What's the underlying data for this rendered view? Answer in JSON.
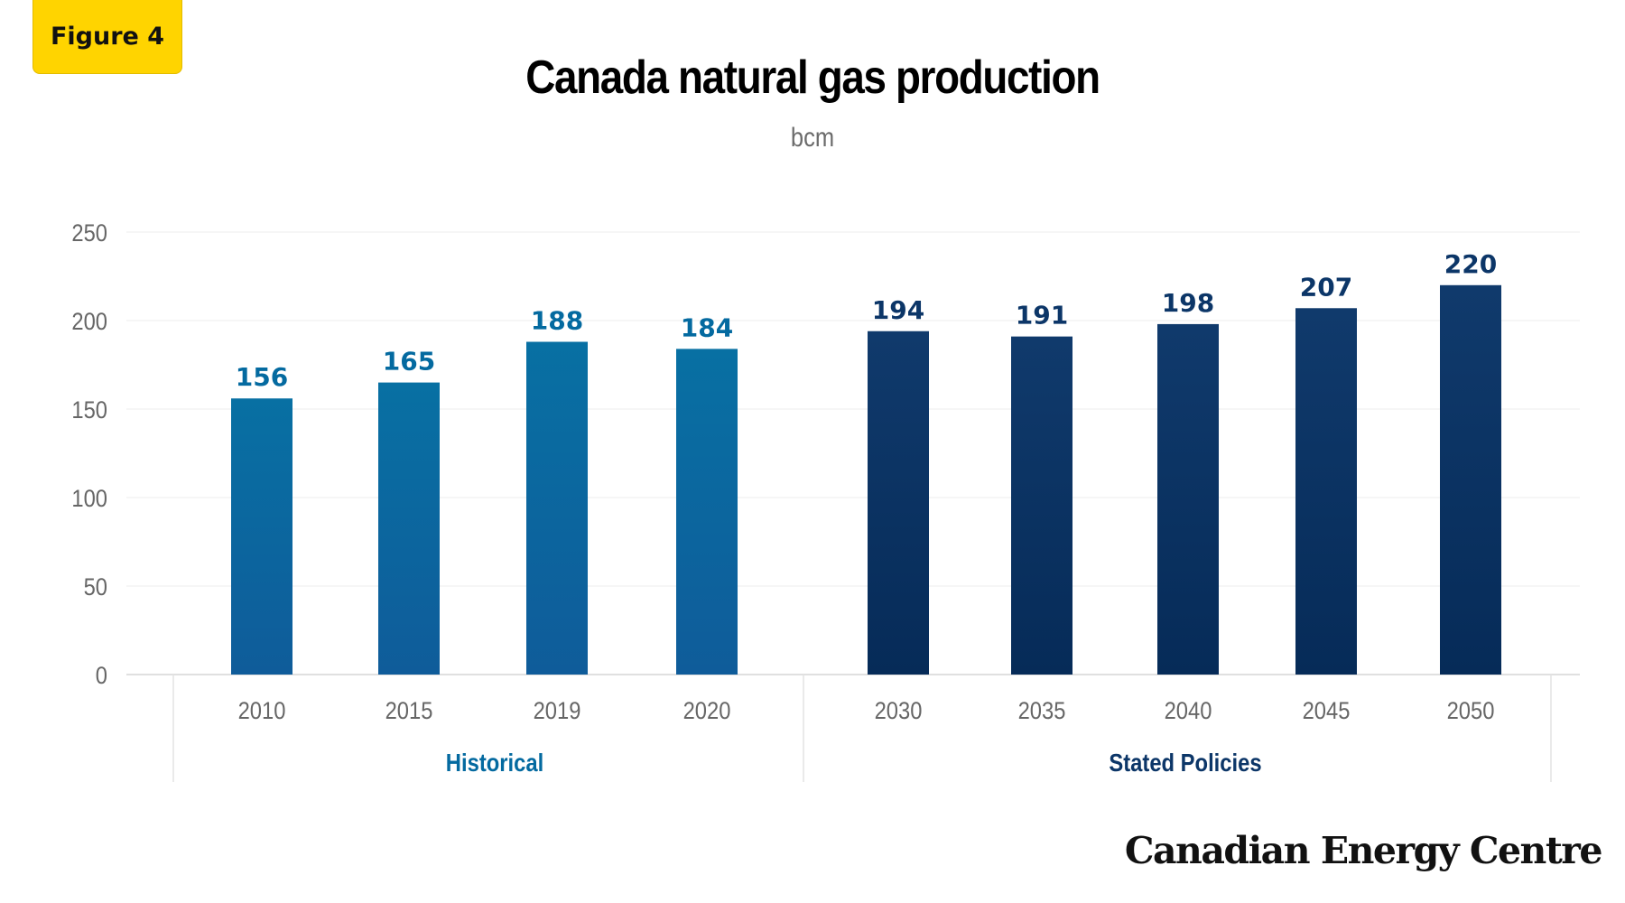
{
  "badge": "Figure 4",
  "brand": "Canadian Energy Centre",
  "colors": {
    "historical": "#046aa0",
    "stated": "#0c3668",
    "grid": "#ececec",
    "axis_text": "#666666"
  },
  "chart_data": {
    "type": "bar",
    "title": "Canada natural gas production",
    "subtitle": "bcm",
    "ylim": [
      0,
      250
    ],
    "yticks": [
      0,
      50,
      100,
      150,
      200,
      250
    ],
    "grid": true,
    "categories": [
      "2010",
      "2015",
      "2019",
      "2020",
      "2030",
      "2035",
      "2040",
      "2045",
      "2050"
    ],
    "values": [
      156,
      165,
      188,
      184,
      194,
      191,
      198,
      207,
      220
    ],
    "groups": [
      {
        "name": "Historical",
        "categories": [
          "2010",
          "2015",
          "2019",
          "2020"
        ],
        "values": [
          156,
          165,
          188,
          184
        ]
      },
      {
        "name": "Stated Policies",
        "categories": [
          "2030",
          "2035",
          "2040",
          "2045",
          "2050"
        ],
        "values": [
          194,
          191,
          198,
          207,
          220
        ]
      }
    ]
  }
}
